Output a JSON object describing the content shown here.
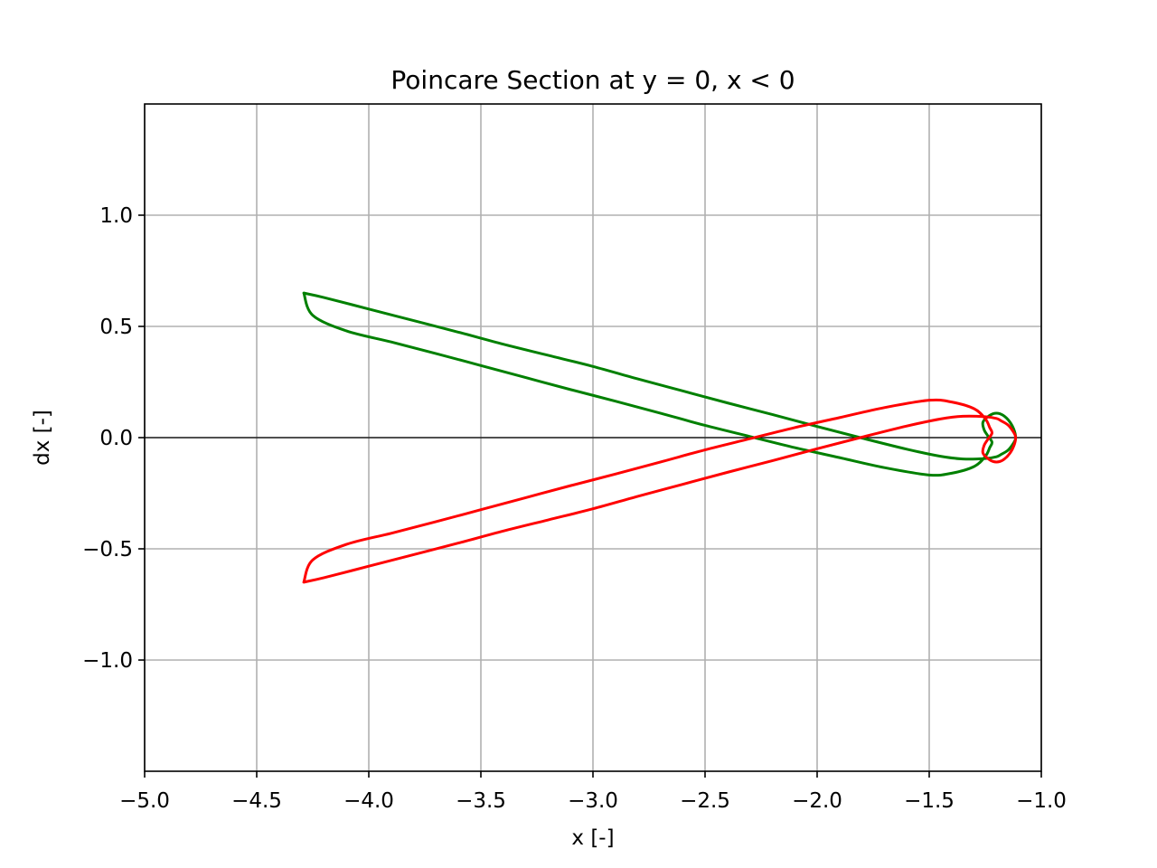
{
  "chart_data": {
    "type": "line",
    "title": "Poincare Section at y = 0, x < 0",
    "xlabel": "x [-]",
    "ylabel": "dx [-]",
    "xlim": [
      -5.0,
      -1.0
    ],
    "ylim": [
      -1.5,
      1.5
    ],
    "grid": true,
    "legend": "none",
    "zero_line": 0.0,
    "x_ticks": [
      {
        "value": -5.0,
        "label": "−5.0"
      },
      {
        "value": -4.5,
        "label": "−4.5"
      },
      {
        "value": -4.0,
        "label": "−4.0"
      },
      {
        "value": -3.5,
        "label": "−3.5"
      },
      {
        "value": -3.0,
        "label": "−3.0"
      },
      {
        "value": -2.5,
        "label": "−2.5"
      },
      {
        "value": -2.0,
        "label": "−2.0"
      },
      {
        "value": -1.5,
        "label": "−1.5"
      },
      {
        "value": -1.0,
        "label": "−1.0"
      }
    ],
    "y_ticks": [
      {
        "value": 1.0,
        "label": "1.0"
      },
      {
        "value": 0.5,
        "label": "0.5"
      },
      {
        "value": 0.0,
        "label": "0.0"
      },
      {
        "value": -0.5,
        "label": "−0.5"
      },
      {
        "value": -1.0,
        "label": "−1.0"
      }
    ],
    "series": [
      {
        "color": "#008000",
        "x": [
          -4.29,
          -4.2,
          -4.0,
          -3.8,
          -3.6,
          -3.4,
          -3.2,
          -3.0,
          -2.8,
          -2.6,
          -2.4,
          -2.2,
          -2.0,
          -1.8,
          -1.6,
          -1.45,
          -1.35,
          -1.25,
          -1.2,
          -1.18,
          -1.15,
          -1.13,
          -1.115,
          -1.12,
          -1.14,
          -1.17,
          -1.2,
          -1.23,
          -1.26,
          -1.255,
          -1.24,
          -1.22,
          -1.23,
          -1.25,
          -1.3,
          -1.4,
          -1.5,
          -1.7,
          -1.9,
          -2.1,
          -2.3,
          -2.5,
          -2.7,
          -2.9,
          -3.1,
          -3.3,
          -3.5,
          -3.7,
          -3.9,
          -4.1,
          -4.25,
          -4.29
        ],
        "y": [
          0.65,
          0.63,
          0.578,
          0.526,
          0.474,
          0.42,
          0.37,
          0.32,
          0.264,
          0.21,
          0.156,
          0.104,
          0.05,
          -0.002,
          -0.052,
          -0.084,
          -0.096,
          -0.094,
          -0.086,
          -0.076,
          -0.058,
          -0.034,
          -0.005,
          0.03,
          0.07,
          0.1,
          0.11,
          0.1,
          0.07,
          0.035,
          0.01,
          -0.02,
          -0.045,
          -0.085,
          -0.13,
          -0.16,
          -0.168,
          -0.135,
          -0.09,
          -0.045,
          0.005,
          0.055,
          0.11,
          0.164,
          0.216,
          0.27,
          0.324,
          0.378,
          0.43,
          0.48,
          0.55,
          0.65
        ]
      },
      {
        "color": "#ff0000",
        "x": [
          -4.29,
          -4.2,
          -4.0,
          -3.8,
          -3.6,
          -3.4,
          -3.2,
          -3.0,
          -2.8,
          -2.6,
          -2.4,
          -2.2,
          -2.0,
          -1.8,
          -1.6,
          -1.45,
          -1.35,
          -1.25,
          -1.2,
          -1.18,
          -1.15,
          -1.13,
          -1.115,
          -1.12,
          -1.14,
          -1.17,
          -1.2,
          -1.23,
          -1.26,
          -1.255,
          -1.24,
          -1.22,
          -1.23,
          -1.25,
          -1.3,
          -1.4,
          -1.5,
          -1.7,
          -1.9,
          -2.1,
          -2.3,
          -2.5,
          -2.7,
          -2.9,
          -3.1,
          -3.3,
          -3.5,
          -3.7,
          -3.9,
          -4.1,
          -4.25,
          -4.29
        ],
        "y": [
          -0.65,
          -0.63,
          -0.578,
          -0.526,
          -0.474,
          -0.42,
          -0.37,
          -0.32,
          -0.264,
          -0.21,
          -0.156,
          -0.104,
          -0.05,
          0.002,
          0.052,
          0.084,
          0.096,
          0.094,
          0.086,
          0.076,
          0.058,
          0.034,
          0.005,
          -0.03,
          -0.07,
          -0.1,
          -0.11,
          -0.1,
          -0.07,
          -0.035,
          -0.01,
          0.02,
          0.045,
          0.085,
          0.13,
          0.16,
          0.168,
          0.135,
          0.09,
          0.045,
          -0.005,
          -0.055,
          -0.11,
          -0.164,
          -0.216,
          -0.27,
          -0.324,
          -0.378,
          -0.43,
          -0.48,
          -0.55,
          -0.65
        ]
      }
    ]
  }
}
